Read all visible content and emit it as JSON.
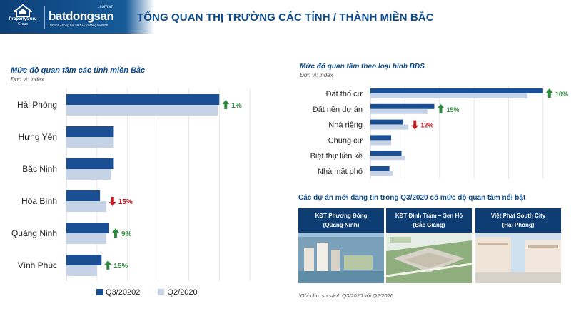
{
  "header": {
    "title": "TỔNG QUAN THỊ TRƯỜNG CÁC TỈNH / THÀNH MIỀN BẮC",
    "propertyguru_name": "PropertyGuru",
    "propertyguru_group": "Group",
    "batdongsan_name": "batdongsan",
    "batdongsan_domain": ".com.vn",
    "batdongsan_tagline": "Nhanh chóng tìm về 1 vị trí đăng tin BĐS"
  },
  "colors": {
    "current": "#1b4f93",
    "previous": "#c6d3e6",
    "up": "#2e8b3e",
    "down": "#c0161c",
    "brand": "#0d4a8a"
  },
  "chart_data": [
    {
      "type": "bar",
      "orientation": "horizontal",
      "title": "Mức độ quan tâm các tỉnh miền Bắc",
      "unit": "Đơn vị: index",
      "categories": [
        "Hải Phòng",
        "Hưng Yên",
        "Bắc Ninh",
        "Hòa Bình",
        "Quảng Ninh",
        "Vĩnh Phúc"
      ],
      "series": [
        {
          "name": "Q3/20202",
          "values": [
            100,
            31,
            31,
            22,
            28,
            23
          ]
        },
        {
          "name": "Q2/2020",
          "values": [
            99,
            31,
            29,
            26,
            26,
            20
          ]
        }
      ],
      "changes": [
        {
          "direction": "up",
          "label": "1%"
        },
        null,
        null,
        {
          "direction": "down",
          "label": "15%"
        },
        {
          "direction": "up",
          "label": "9%"
        },
        {
          "direction": "up",
          "label": "15%"
        }
      ],
      "xlim": [
        0,
        140
      ],
      "legend": "bottom"
    },
    {
      "type": "bar",
      "orientation": "horizontal",
      "title": "Mức độ quan tâm theo loại hình BĐS",
      "unit": "Đơn vị: index",
      "categories": [
        "Đất thổ cư",
        "Đất nền dự án",
        "Nhà riêng",
        "Chung cư",
        "Biệt thự liền kề",
        "Nhà mặt phố"
      ],
      "series": [
        {
          "name": "Q3/20202",
          "values": [
            100,
            37,
            19,
            12,
            18,
            11
          ]
        },
        {
          "name": "Q2/2020",
          "values": [
            91,
            33,
            22,
            12,
            20,
            13
          ]
        }
      ],
      "changes": [
        {
          "direction": "up",
          "label": "10%"
        },
        {
          "direction": "up",
          "label": "15%"
        },
        {
          "direction": "down",
          "label": "12%"
        },
        null,
        null,
        null
      ],
      "xlim": [
        0,
        110
      ]
    }
  ],
  "projects": {
    "title": "Các dự án mới đăng tin trong Q3/2020 có mức độ quan tâm nổi bật",
    "items": [
      {
        "line1": "KĐT Phương Đông",
        "line2": "(Quảng Ninh)"
      },
      {
        "line1": "KĐT Đình Trám – Sen Hồ",
        "line2": "(Bắc Giang)"
      },
      {
        "line1": "Việt Phát South City",
        "line2": "(Hải Phòng)"
      }
    ]
  },
  "note": "*Ghi chú: so sánh Q3/2020 với Q2/2020"
}
